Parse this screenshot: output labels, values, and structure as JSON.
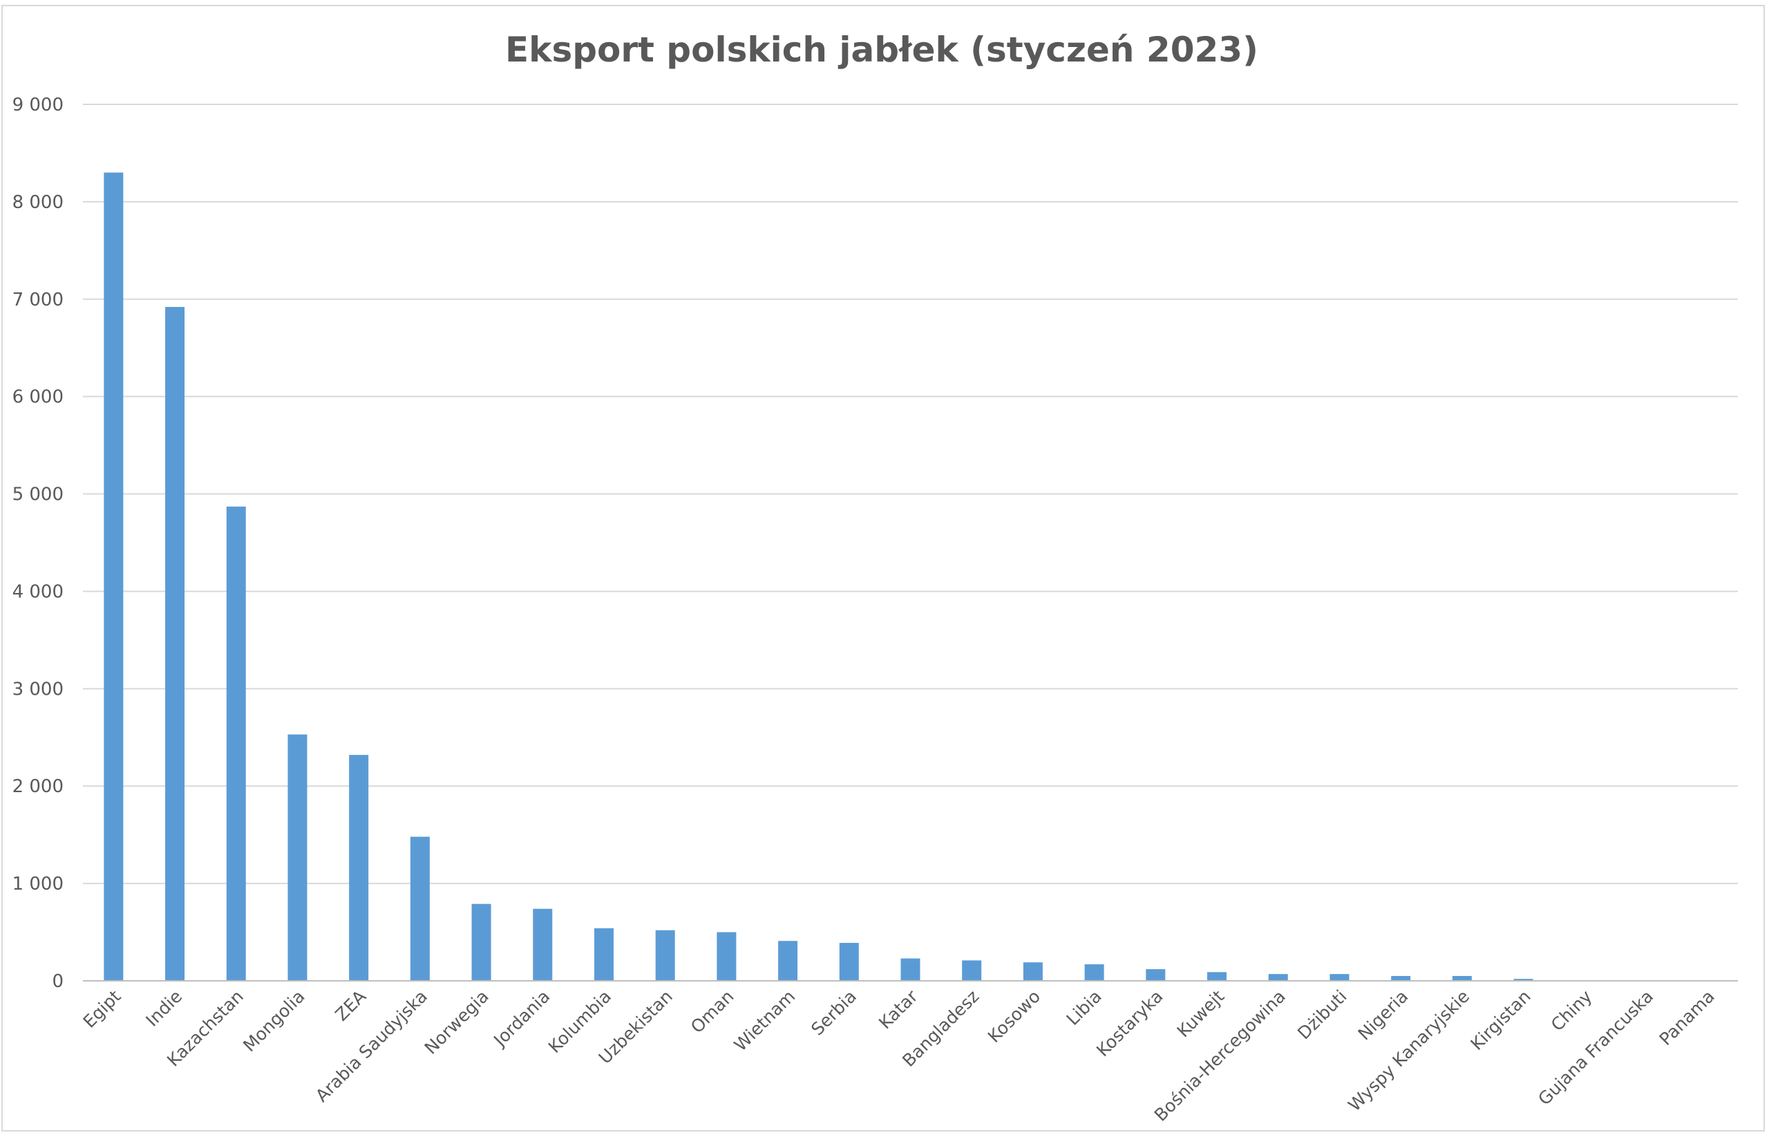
{
  "chart_data": {
    "type": "bar",
    "title": "Eksport polskich jabłek (styczeń 2023)",
    "xlabel": "",
    "ylabel": "",
    "ylim": [
      0,
      9000
    ],
    "y_ticks": [
      {
        "value": 0,
        "label": "0"
      },
      {
        "value": 1000,
        "label": "1 000"
      },
      {
        "value": 2000,
        "label": "2 000"
      },
      {
        "value": 3000,
        "label": "3 000"
      },
      {
        "value": 4000,
        "label": "4 000"
      },
      {
        "value": 5000,
        "label": "5 000"
      },
      {
        "value": 6000,
        "label": "6 000"
      },
      {
        "value": 7000,
        "label": "7 000"
      },
      {
        "value": 8000,
        "label": "8 000"
      },
      {
        "value": 9000,
        "label": "9 000"
      }
    ],
    "grid": true,
    "legend": "none",
    "bar_color": "#5b9bd5",
    "categories": [
      "Egipt",
      "Indie",
      "Kazachstan",
      "Mongolia",
      "ZEA",
      "Arabia Saudyjska",
      "Norwegia",
      "Jordania",
      "Kolumbia",
      "Uzbekistan",
      "Oman",
      "Wietnam",
      "Serbia",
      "Katar",
      "Bangladesz",
      "Kosowo",
      "Libia",
      "Kostaryka",
      "Kuwejt",
      "Bośnia-Hercegowina",
      "Dżibuti",
      "Nigeria",
      "Wyspy Kanaryjskie",
      "Kirgistan",
      "Chiny",
      "Gujana Francuska",
      "Panama"
    ],
    "values": [
      8300,
      6920,
      4870,
      2530,
      2320,
      1480,
      790,
      740,
      540,
      520,
      500,
      410,
      390,
      230,
      210,
      190,
      170,
      120,
      90,
      70,
      70,
      50,
      50,
      20,
      0,
      0,
      0
    ]
  }
}
